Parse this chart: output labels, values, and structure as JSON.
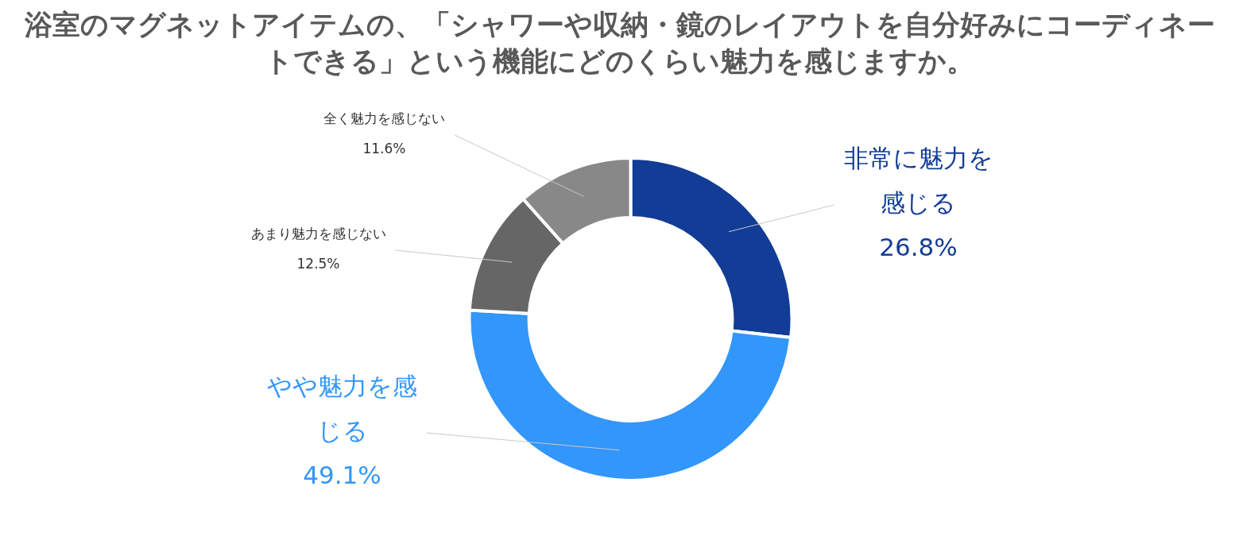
{
  "chart_data": {
    "type": "donut",
    "title": "浴室のマグネットアイテムの、「シャワーや収納・鏡のレイアウトを自分好みにコーディネートできる」という機能にどのくらい魅力を感じますか。",
    "categories": [
      "非常に魅力を感じる",
      "やや魅力を感じる",
      "あまり魅力を感じない",
      "全く魅力を感じない"
    ],
    "values": [
      26.8,
      49.1,
      12.5,
      11.6
    ],
    "value_labels": [
      "26.8%",
      "49.1%",
      "12.5%",
      "11.6%"
    ],
    "colors": [
      "#123c96",
      "#3296fa",
      "#666666",
      "#888888"
    ],
    "legend": false
  }
}
